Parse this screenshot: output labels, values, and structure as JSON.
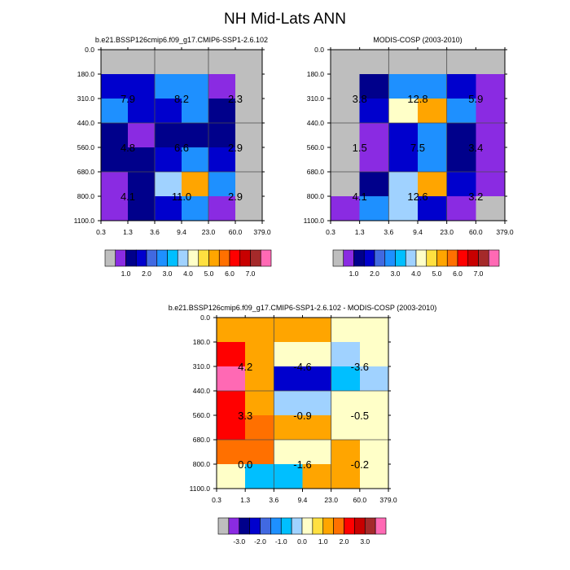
{
  "title": "NH Mid-Lats ANN",
  "colors": {
    "background": "#ffffff",
    "missing": "#bebebe",
    "frame": "#000000",
    "seam": "#4d4d4d"
  },
  "chart_data": [
    {
      "type": "heatmap",
      "title": "b.e21.BSSP126cmip6.f09_g17.CMIP6-SSP1-2.6.102",
      "x_ticks": [
        "0.3",
        "1.3",
        "3.6",
        "9.4",
        "23.0",
        "60.0",
        "379.0"
      ],
      "y_ticks": [
        "0.0",
        "180.0",
        "310.0",
        "440.0",
        "560.0",
        "680.0",
        "800.0",
        "1100.0"
      ],
      "x_boundaries": [
        0.3,
        1.3,
        3.6,
        9.4,
        23.0,
        60.0,
        379.0
      ],
      "y_boundaries": [
        0.0,
        180.0,
        310.0,
        440.0,
        560.0,
        680.0,
        800.0,
        1100.0
      ],
      "xlabel": "",
      "ylabel": "",
      "palette": "ctp",
      "cells": [
        [
          0,
          0,
          0,
          0,
          0,
          0
        ],
        [
          3,
          3,
          5,
          5,
          1,
          0
        ],
        [
          5,
          3,
          3,
          5,
          2,
          0
        ],
        [
          2,
          1,
          2,
          2,
          2,
          0
        ],
        [
          2,
          2,
          3,
          5,
          3,
          0
        ],
        [
          1,
          2,
          7,
          10,
          5,
          0
        ],
        [
          1,
          2,
          3,
          5,
          1,
          0
        ]
      ],
      "labels": [
        {
          "text": "7.9",
          "col": 0,
          "row": 1
        },
        {
          "text": "8.2",
          "col": 2,
          "row": 1
        },
        {
          "text": "2.3",
          "col": 4,
          "row": 1
        },
        {
          "text": "4.8",
          "col": 0,
          "row": 3
        },
        {
          "text": "6.6",
          "col": 2,
          "row": 3
        },
        {
          "text": "2.9",
          "col": 4,
          "row": 3
        },
        {
          "text": "4.1",
          "col": 0,
          "row": 5
        },
        {
          "text": "11.0",
          "col": 2,
          "row": 5
        },
        {
          "text": "2.9",
          "col": 4,
          "row": 5
        }
      ],
      "colorbar": {
        "tick_labels": [
          "1.0",
          "2.0",
          "3.0",
          "4.0",
          "5.0",
          "6.0",
          "7.0"
        ]
      }
    },
    {
      "type": "heatmap",
      "title": "MODIS-COSP (2003-2010)",
      "x_ticks": [
        "0.3",
        "1.3",
        "3.6",
        "9.4",
        "23.0",
        "60.0",
        "379.0"
      ],
      "y_ticks": [
        "0.0",
        "180.0",
        "310.0",
        "440.0",
        "560.0",
        "680.0",
        "800.0",
        "1100.0"
      ],
      "x_boundaries": [
        0.3,
        1.3,
        3.6,
        9.4,
        23.0,
        60.0,
        379.0
      ],
      "y_boundaries": [
        0.0,
        180.0,
        310.0,
        440.0,
        560.0,
        680.0,
        800.0,
        1100.0
      ],
      "xlabel": "",
      "ylabel": "",
      "palette": "ctp",
      "cells": [
        [
          0,
          0,
          0,
          0,
          0,
          0
        ],
        [
          0,
          2,
          5,
          5,
          3,
          1
        ],
        [
          0,
          3,
          8,
          10,
          5,
          1
        ],
        [
          0,
          1,
          3,
          5,
          2,
          1
        ],
        [
          0,
          1,
          3,
          5,
          2,
          1
        ],
        [
          0,
          2,
          7,
          10,
          3,
          1
        ],
        [
          1,
          5,
          7,
          3,
          1,
          0
        ]
      ],
      "labels": [
        {
          "text": "3.8",
          "col": 0,
          "row": 1
        },
        {
          "text": "12.8",
          "col": 2,
          "row": 1
        },
        {
          "text": "5.9",
          "col": 4,
          "row": 1
        },
        {
          "text": "1.5",
          "col": 0,
          "row": 3
        },
        {
          "text": "7.5",
          "col": 2,
          "row": 3
        },
        {
          "text": "3.4",
          "col": 4,
          "row": 3
        },
        {
          "text": "4.1",
          "col": 0,
          "row": 5
        },
        {
          "text": "12.6",
          "col": 2,
          "row": 5
        },
        {
          "text": "3.2",
          "col": 4,
          "row": 5
        }
      ],
      "colorbar": {
        "tick_labels": [
          "1.0",
          "2.0",
          "3.0",
          "4.0",
          "5.0",
          "6.0",
          "7.0"
        ]
      }
    },
    {
      "type": "heatmap",
      "title": "b.e21.BSSP126cmip6.f09_g17.CMIP6-SSP1-2.6.102 - MODIS-COSP (2003-2010)",
      "x_ticks": [
        "0.3",
        "1.3",
        "3.6",
        "9.4",
        "23.0",
        "60.0",
        "379.0"
      ],
      "y_ticks": [
        "0.0",
        "180.0",
        "310.0",
        "440.0",
        "560.0",
        "680.0",
        "800.0",
        "1100.0"
      ],
      "x_boundaries": [
        0.3,
        1.3,
        3.6,
        9.4,
        23.0,
        60.0,
        379.0
      ],
      "y_boundaries": [
        0.0,
        180.0,
        310.0,
        440.0,
        560.0,
        680.0,
        800.0,
        1100.0
      ],
      "xlabel": "",
      "ylabel": "",
      "palette": "ctp",
      "cells": [
        [
          10,
          10,
          10,
          10,
          8,
          8
        ],
        [
          12,
          10,
          8,
          8,
          7,
          8
        ],
        [
          15,
          10,
          3,
          3,
          6,
          7
        ],
        [
          12,
          10,
          7,
          7,
          8,
          8
        ],
        [
          12,
          11,
          10,
          10,
          8,
          8
        ],
        [
          11,
          11,
          8,
          8,
          10,
          8
        ],
        [
          8,
          6,
          6,
          10,
          10,
          8
        ]
      ],
      "labels": [
        {
          "text": "4.2",
          "col": 0,
          "row": 1
        },
        {
          "text": "-4.6",
          "col": 2,
          "row": 1
        },
        {
          "text": "-3.6",
          "col": 4,
          "row": 1
        },
        {
          "text": "3.3",
          "col": 0,
          "row": 3
        },
        {
          "text": "-0.9",
          "col": 2,
          "row": 3
        },
        {
          "text": "-0.5",
          "col": 4,
          "row": 3
        },
        {
          "text": "0.0",
          "col": 0,
          "row": 5
        },
        {
          "text": "-1.6",
          "col": 2,
          "row": 5
        },
        {
          "text": "-0.2",
          "col": 4,
          "row": 5
        }
      ],
      "colorbar": {
        "tick_labels": [
          "-3.0",
          "-2.0",
          "-1.0",
          "0.0",
          "1.0",
          "2.0",
          "3.0"
        ]
      }
    }
  ],
  "palette_colors": [
    "#bebebe",
    "#8a2be2",
    "#00008b",
    "#0000cd",
    "#4169e1",
    "#1e90ff",
    "#00bfff",
    "#a0d2ff",
    "#ffffc8",
    "#ffe040",
    "#ffa500",
    "#ff7000",
    "#ff0000",
    "#c80000",
    "#a52a2a",
    "#ff69b4"
  ]
}
